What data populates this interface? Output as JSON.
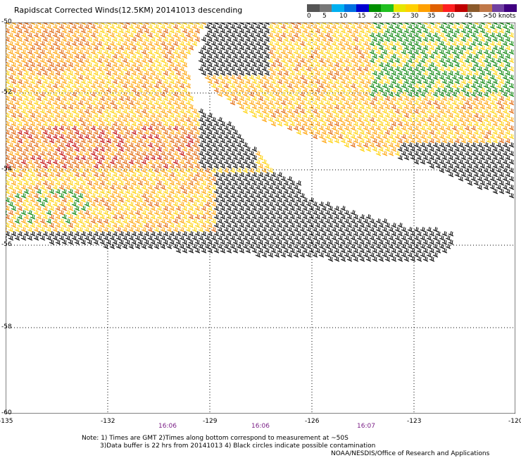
{
  "title": "Rapidscat Corrected Winds(12.5KM) 20141013 descending",
  "scale": {
    "colors": [
      "#555555",
      "#777777",
      "#00b0f0",
      "#0070e0",
      "#0000d0",
      "#009000",
      "#20c020",
      "#e6e600",
      "#ffd000",
      "#ffa000",
      "#e06000",
      "#ff2020",
      "#c00000",
      "#8b5a2b",
      "#c07848",
      "#7040a0",
      "#400080"
    ],
    "labels": [
      "0",
      "5",
      "10",
      "15",
      "20",
      "25",
      "30",
      "35",
      "40",
      "45",
      ">50 knots"
    ]
  },
  "axes": {
    "lat_labels": [
      "-50",
      "-52",
      "-54",
      "-56",
      "-58",
      "-60"
    ],
    "lon_labels": [
      "-135",
      "-132",
      "-129",
      "-126",
      "-123",
      "-120"
    ]
  },
  "times": [
    "16:06",
    "16:06",
    "16:07"
  ],
  "notes": {
    "line1": "Note: 1) Times are GMT 2)Times along bottom correspond to measurement at ~50S",
    "line2": "3)Data buffer is 22 hrs from 20141013 4) Black circles indicate possible contamination",
    "credit": "NOAA/NESDIS/Office of Research and Applications"
  },
  "legend_colors": {
    "black": "#000000",
    "yellow": "#ffd000",
    "gold": "#ffa000",
    "orange": "#e06000",
    "red": "#c00000",
    "green": "#008000"
  }
}
